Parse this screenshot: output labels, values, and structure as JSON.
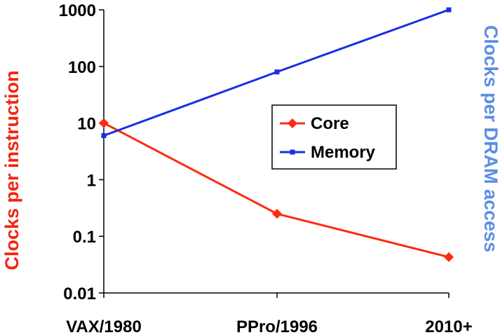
{
  "chart_data": {
    "type": "line",
    "title": "",
    "xlabel": "",
    "ylabel": "Clocks per instruction",
    "ylabel_right": {
      "prefix": "Clocks per ",
      "highlight": "DRAM",
      "suffix": " access"
    },
    "yscale": "log",
    "ylim": [
      0.01,
      1000
    ],
    "yticks": [
      {
        "value": 1000,
        "label": "1000"
      },
      {
        "value": 100,
        "label": "100"
      },
      {
        "value": 10,
        "label": "10"
      },
      {
        "value": 1,
        "label": "1"
      },
      {
        "value": 0.1,
        "label": "0.1"
      },
      {
        "value": 0.01,
        "label": "0.01"
      }
    ],
    "categories": [
      "VAX/1980",
      "PPro/1996",
      "2010+"
    ],
    "series": [
      {
        "name": "Core",
        "color": "#ff2a10",
        "marker": "diamond",
        "values": [
          10,
          0.25,
          0.043
        ]
      },
      {
        "name": "Memory",
        "color": "#1a2ee6",
        "marker": "square",
        "values": [
          6,
          80,
          1000
        ]
      }
    ],
    "grid": false,
    "legend_position": "center-right",
    "colors": {
      "left_axis_title": "#f42410",
      "right_axis_title": "#5a8ee6"
    }
  }
}
